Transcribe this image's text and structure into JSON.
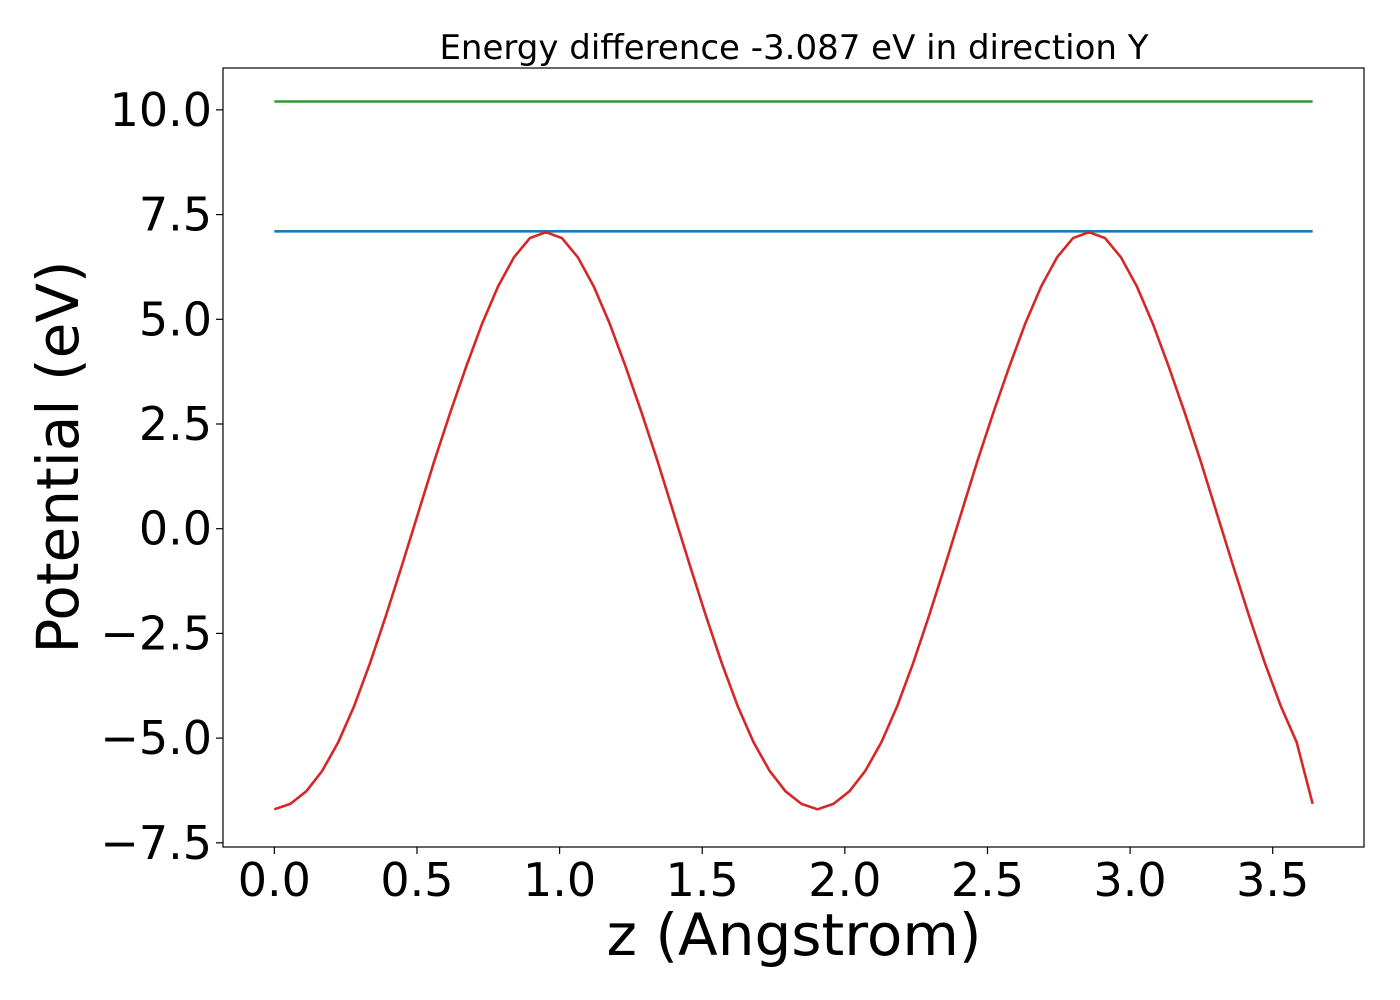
{
  "chart_data": {
    "type": "line",
    "title": "Energy difference -3.087 eV in direction Y",
    "xlabel": "z (Angstrom)",
    "ylabel": "Potential (eV)",
    "xlim": [
      -0.18,
      3.82
    ],
    "ylim": [
      -7.6,
      11.0
    ],
    "xticks": [
      0.0,
      0.5,
      1.0,
      1.5,
      2.0,
      2.5,
      3.0,
      3.5
    ],
    "xtick_labels": [
      "0.0",
      "0.5",
      "1.0",
      "1.5",
      "2.0",
      "2.5",
      "3.0",
      "3.5"
    ],
    "yticks": [
      -7.5,
      -5.0,
      -2.5,
      0.0,
      2.5,
      5.0,
      7.5,
      10.0
    ],
    "ytick_labels": [
      "−7.5",
      "−5.0",
      "−2.5",
      "0.0",
      "2.5",
      "5.0",
      "7.5",
      "10.0"
    ],
    "grid": false,
    "legend": "none",
    "series": [
      {
        "color": "#2ca02c",
        "x": [
          0.0,
          3.64
        ],
        "y": [
          10.2,
          10.2
        ]
      },
      {
        "color": "#1f77b4",
        "x": [
          0.0,
          3.64
        ],
        "y": [
          7.1,
          7.1
        ]
      },
      {
        "color": "#d62728",
        "x": [
          0.0,
          0.056,
          0.112,
          0.168,
          0.224,
          0.28,
          0.336,
          0.392,
          0.448,
          0.504,
          0.56,
          0.616,
          0.672,
          0.728,
          0.784,
          0.84,
          0.896,
          0.952,
          1.008,
          1.064,
          1.12,
          1.176,
          1.232,
          1.288,
          1.344,
          1.4,
          1.456,
          1.512,
          1.568,
          1.624,
          1.68,
          1.736,
          1.792,
          1.848,
          1.904,
          1.96,
          2.016,
          2.072,
          2.128,
          2.184,
          2.24,
          2.296,
          2.352,
          2.408,
          2.464,
          2.52,
          2.576,
          2.632,
          2.688,
          2.744,
          2.8,
          2.856,
          2.912,
          2.968,
          3.024,
          3.08,
          3.136,
          3.192,
          3.248,
          3.304,
          3.36,
          3.416,
          3.472,
          3.528,
          3.584,
          3.64
        ],
        "y": [
          -6.7,
          -6.57,
          -6.27,
          -5.78,
          -5.1,
          -4.23,
          -3.2,
          -2.06,
          -0.86,
          0.37,
          1.6,
          2.76,
          3.86,
          4.89,
          5.78,
          6.48,
          6.94,
          7.08,
          6.94,
          6.48,
          5.78,
          4.89,
          3.86,
          2.76,
          1.6,
          0.37,
          -0.86,
          -2.06,
          -3.2,
          -4.23,
          -5.1,
          -5.78,
          -6.27,
          -6.57,
          -6.7,
          -6.57,
          -6.27,
          -5.78,
          -5.1,
          -4.23,
          -3.2,
          -2.06,
          -0.86,
          0.37,
          1.6,
          2.76,
          3.86,
          4.89,
          5.78,
          6.48,
          6.94,
          7.08,
          6.94,
          6.48,
          5.78,
          4.89,
          3.86,
          2.76,
          1.6,
          0.37,
          -0.86,
          -2.06,
          -3.2,
          -4.23,
          -5.1,
          -6.57
        ]
      }
    ]
  }
}
